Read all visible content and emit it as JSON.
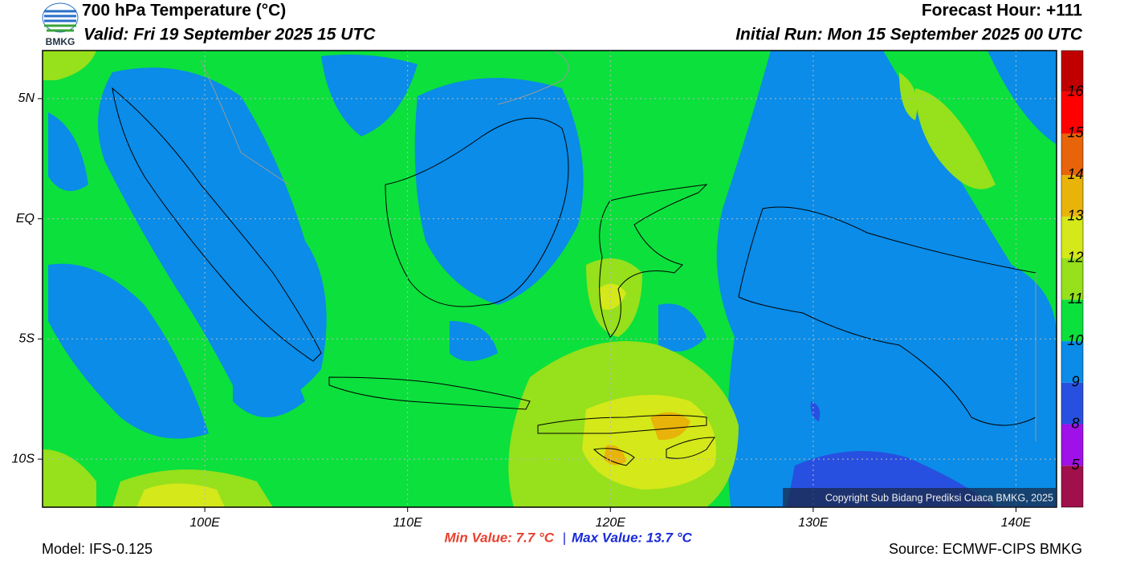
{
  "header": {
    "logo_text": "BMKG",
    "title": "700 hPa Temperature (°C)",
    "valid": "Valid: Fri 19 September 2025 15 UTC",
    "forecast_hour": "Forecast Hour: +111",
    "initial_run": "Initial Run: Mon 15 September 2025 00 UTC"
  },
  "map": {
    "lon_range": [
      92,
      142
    ],
    "lat_range": [
      -12,
      7
    ],
    "lon_ticks": [
      {
        "value": 100,
        "label": "100E"
      },
      {
        "value": 110,
        "label": "110E"
      },
      {
        "value": 120,
        "label": "120E"
      },
      {
        "value": 130,
        "label": "130E"
      },
      {
        "value": 140,
        "label": "140E"
      }
    ],
    "lat_ticks": [
      {
        "value": 5,
        "label": "5N"
      },
      {
        "value": 0,
        "label": "EQ"
      },
      {
        "value": -5,
        "label": "5S"
      },
      {
        "value": -10,
        "label": "10S"
      }
    ],
    "copyright": "Copyright Sub Bidang Prediksi Cuaca BMKG, 2025"
  },
  "colorbar": {
    "levels": [
      5,
      8,
      9,
      10,
      11,
      12,
      13,
      14,
      15,
      16
    ],
    "colors": [
      "#a0104a",
      "#a010e8",
      "#2850e0",
      "#0a8ce8",
      "#0ce03c",
      "#96e01c",
      "#d4e81a",
      "#e8b40a",
      "#e8640a",
      "#ff0000",
      "#c00000"
    ]
  },
  "footer": {
    "min_value": "Min Value: 7.7 °C",
    "separator": "|",
    "max_value": "Max Value: 13.7 °C",
    "model": "Model: IFS-0.125",
    "source": "Source: ECMWF-CIPS BMKG"
  }
}
